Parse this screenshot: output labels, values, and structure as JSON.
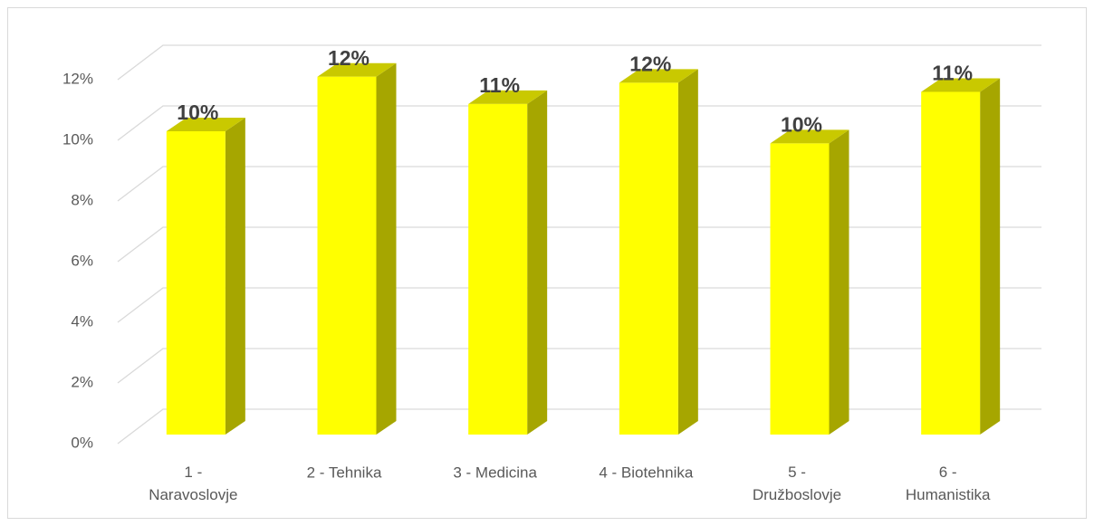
{
  "chart_data": {
    "type": "bar3d",
    "categories": [
      "1 - Naravoslovje",
      "2 - Tehnika",
      "3 - Medicina",
      "4 - Biotehnika",
      "5 - Družboslovje",
      "6 - Humanistika"
    ],
    "values": [
      10.0,
      11.8,
      10.9,
      11.6,
      9.6,
      11.3
    ],
    "value_labels": [
      "10%",
      "12%",
      "11%",
      "12%",
      "10%",
      "11%"
    ],
    "color": "#ffff00",
    "ylim": [
      0,
      12
    ],
    "yticks": [
      {
        "value": 0,
        "label": "0%"
      },
      {
        "value": 2,
        "label": "2%"
      },
      {
        "value": 4,
        "label": "4%"
      },
      {
        "value": 6,
        "label": "6%"
      },
      {
        "value": 8,
        "label": "8%"
      },
      {
        "value": 10,
        "label": "10%"
      },
      {
        "value": 12,
        "label": "12%"
      }
    ],
    "grid": true
  }
}
